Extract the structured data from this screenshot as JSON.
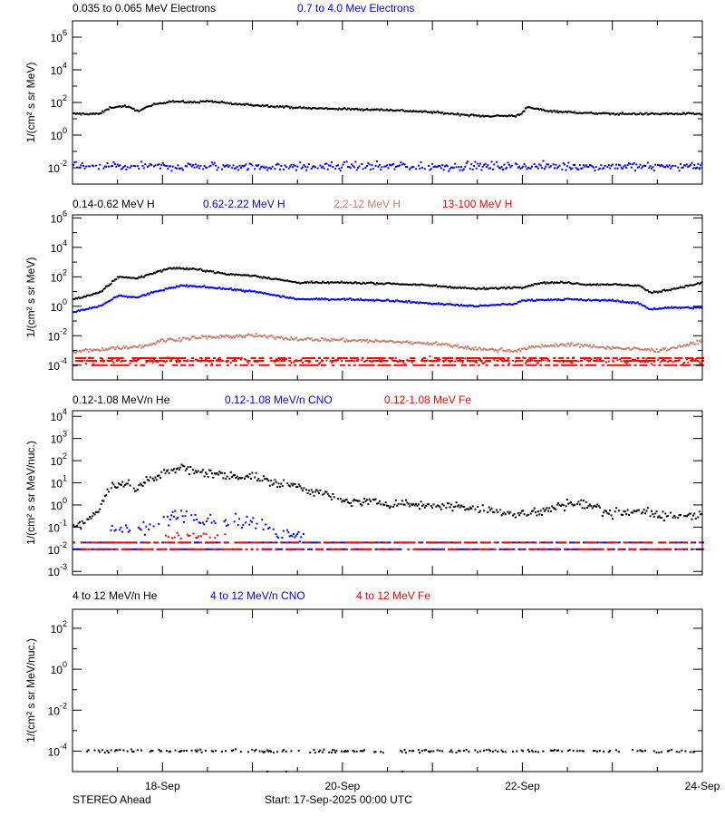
{
  "footer": {
    "spacecraft": "STEREO Ahead",
    "start": "Start: 17-Sep-2025 00:00 UTC"
  },
  "x_axis": {
    "start": "2025-09-17T00:00",
    "end": "2025-09-24T00:00",
    "tick_labels": [
      {
        "date": "2025-09-18T00:00",
        "label": "18-Sep"
      },
      {
        "date": "2025-09-20T00:00",
        "label": "20-Sep"
      },
      {
        "date": "2025-09-22T00:00",
        "label": "22-Sep"
      },
      {
        "date": "2025-09-24T00:00",
        "label": "24-Sep"
      }
    ]
  },
  "colors": {
    "black": "#000000",
    "blue": "#0000ff",
    "brown": "#c8806a",
    "red": "#ff0000"
  },
  "chart_data": [
    {
      "type": "scatter",
      "yscale": "log",
      "ylabel": "1/(cm² s sr MeV)",
      "ylim": [
        0.001,
        10000000
      ],
      "ytick_exponents": [
        -2,
        0,
        2,
        4,
        6
      ],
      "series": [
        {
          "name": "0.035 to 0.065 MeV Electrons",
          "color": "black",
          "points": [
            [
              "2025-09-17T00:00",
              20
            ],
            [
              "2025-09-17T07:00",
              20
            ],
            [
              "2025-09-17T10:00",
              50
            ],
            [
              "2025-09-17T14:00",
              60
            ],
            [
              "2025-09-17T17:00",
              30
            ],
            [
              "2025-09-17T22:00",
              80
            ],
            [
              "2025-09-18T02:00",
              120
            ],
            [
              "2025-09-18T07:00",
              100
            ],
            [
              "2025-09-18T12:00",
              120
            ],
            [
              "2025-09-18T19:00",
              80
            ],
            [
              "2025-09-19T05:00",
              60
            ],
            [
              "2025-09-19T14:00",
              45
            ],
            [
              "2025-09-20T00:00",
              40
            ],
            [
              "2025-09-20T12:00",
              35
            ],
            [
              "2025-09-21T00:00",
              25
            ],
            [
              "2025-09-21T12:00",
              15
            ],
            [
              "2025-09-21T22:00",
              15
            ],
            [
              "2025-09-22T00:00",
              25
            ],
            [
              "2025-09-22T01:00",
              50
            ],
            [
              "2025-09-22T07:00",
              30
            ],
            [
              "2025-09-22T17:00",
              22
            ],
            [
              "2025-09-23T00:00",
              20
            ],
            [
              "2025-09-23T12:00",
              20
            ],
            [
              "2025-09-24T00:00",
              20
            ]
          ]
        },
        {
          "name": "0.7 to 4.0 Mev Electrons",
          "color": "blue",
          "points": [
            [
              "2025-09-17T00:00",
              0.012
            ],
            [
              "2025-09-24T00:00",
              0.012
            ]
          ]
        }
      ]
    },
    {
      "type": "scatter",
      "yscale": "log",
      "ylabel": "1/(cm² s sr MeV)",
      "ylim": [
        1e-05,
        1600000
      ],
      "ytick_exponents": [
        -4,
        -2,
        0,
        2,
        4,
        6
      ],
      "series": [
        {
          "name": "0.14-0.62 MeV H",
          "color": "black",
          "points": [
            [
              "2025-09-17T00:00",
              3
            ],
            [
              "2025-09-17T07:00",
              8
            ],
            [
              "2025-09-17T12:00",
              100
            ],
            [
              "2025-09-17T17:00",
              80
            ],
            [
              "2025-09-17T22:00",
              200
            ],
            [
              "2025-09-18T02:00",
              400
            ],
            [
              "2025-09-18T10:00",
              300
            ],
            [
              "2025-09-18T17:00",
              150
            ],
            [
              "2025-09-19T00:00",
              120
            ],
            [
              "2025-09-19T12:00",
              40
            ],
            [
              "2025-09-20T00:00",
              40
            ],
            [
              "2025-09-20T12:00",
              35
            ],
            [
              "2025-09-21T00:00",
              25
            ],
            [
              "2025-09-21T12:00",
              15
            ],
            [
              "2025-09-22T00:00",
              20
            ],
            [
              "2025-09-22T05:00",
              40
            ],
            [
              "2025-09-22T12:00",
              40
            ],
            [
              "2025-09-22T17:00",
              30
            ],
            [
              "2025-09-23T00:00",
              30
            ],
            [
              "2025-09-23T07:00",
              25
            ],
            [
              "2025-09-23T10:00",
              8
            ],
            [
              "2025-09-23T14:00",
              12
            ],
            [
              "2025-09-24T00:00",
              40
            ]
          ]
        },
        {
          "name": "0.62-2.22 MeV H",
          "color": "blue",
          "points": [
            [
              "2025-09-17T00:00",
              0.4
            ],
            [
              "2025-09-17T07:00",
              1
            ],
            [
              "2025-09-17T12:00",
              5
            ],
            [
              "2025-09-17T17:00",
              4
            ],
            [
              "2025-09-17T22:00",
              10
            ],
            [
              "2025-09-18T05:00",
              25
            ],
            [
              "2025-09-18T12:00",
              20
            ],
            [
              "2025-09-19T00:00",
              10
            ],
            [
              "2025-09-19T12:00",
              3
            ],
            [
              "2025-09-20T00:00",
              3
            ],
            [
              "2025-09-20T12:00",
              2.5
            ],
            [
              "2025-09-21T00:00",
              1.5
            ],
            [
              "2025-09-21T12:00",
              1
            ],
            [
              "2025-09-21T22:00",
              1.5
            ],
            [
              "2025-09-22T00:00",
              2.5
            ],
            [
              "2025-09-22T12:00",
              3
            ],
            [
              "2025-09-22T17:00",
              2.5
            ],
            [
              "2025-09-23T00:00",
              2.5
            ],
            [
              "2025-09-23T07:00",
              1.5
            ],
            [
              "2025-09-23T10:00",
              0.6
            ],
            [
              "2025-09-23T14:00",
              0.8
            ],
            [
              "2025-09-24T00:00",
              0.8
            ]
          ]
        },
        {
          "name": "2.2-12 MeV H",
          "color": "brown",
          "points": [
            [
              "2025-09-17T00:00",
              0.0008
            ],
            [
              "2025-09-17T12:00",
              0.0015
            ],
            [
              "2025-09-17T19:00",
              0.002
            ],
            [
              "2025-09-18T00:00",
              0.005
            ],
            [
              "2025-09-18T12:00",
              0.008
            ],
            [
              "2025-09-19T00:00",
              0.01
            ],
            [
              "2025-09-19T12:00",
              0.006
            ],
            [
              "2025-09-20T00:00",
              0.005
            ],
            [
              "2025-09-20T12:00",
              0.004
            ],
            [
              "2025-09-21T00:00",
              0.003
            ],
            [
              "2025-09-21T12:00",
              0.0012
            ],
            [
              "2025-09-21T22:00",
              0.001
            ],
            [
              "2025-09-22T05:00",
              0.002
            ],
            [
              "2025-09-22T12:00",
              0.0025
            ],
            [
              "2025-09-23T00:00",
              0.0015
            ],
            [
              "2025-09-23T12:00",
              0.001
            ],
            [
              "2025-09-23T22:00",
              0.003
            ],
            [
              "2025-09-24T00:00",
              0.006
            ]
          ]
        },
        {
          "name": "13-100 MeV H",
          "color": "red",
          "points": [
            [
              "2025-09-17T00:00",
              0.0002
            ],
            [
              "2025-09-24T00:00",
              0.0002
            ]
          ],
          "levels": [
            0.0003,
            0.0002,
            0.0001
          ]
        }
      ]
    },
    {
      "type": "scatter",
      "yscale": "log",
      "ylabel": "1/(cm² s sr MeV/nuc.)",
      "ylim": [
        0.0007,
        18000
      ],
      "ytick_exponents": [
        -3,
        -2,
        -1,
        0,
        1,
        2,
        3,
        4
      ],
      "series": [
        {
          "name": "0.12-1.08 MeV/n He",
          "color": "black",
          "points": [
            [
              "2025-09-17T00:00",
              0.1
            ],
            [
              "2025-09-17T05:00",
              0.3
            ],
            [
              "2025-09-17T07:00",
              0.6
            ],
            [
              "2025-09-17T10:00",
              8
            ],
            [
              "2025-09-17T14:00",
              10
            ],
            [
              "2025-09-17T17:00",
              5
            ],
            [
              "2025-09-17T19:00",
              12
            ],
            [
              "2025-09-17T22:00",
              15
            ],
            [
              "2025-09-18T00:00",
              30
            ],
            [
              "2025-09-18T05:00",
              50
            ],
            [
              "2025-09-18T07:00",
              35
            ],
            [
              "2025-09-18T14:00",
              25
            ],
            [
              "2025-09-18T19:00",
              20
            ],
            [
              "2025-09-19T00:00",
              20
            ],
            [
              "2025-09-19T05:00",
              10
            ],
            [
              "2025-09-19T12:00",
              7
            ],
            [
              "2025-09-19T19:00",
              3
            ],
            [
              "2025-09-20T00:00",
              1.5
            ],
            [
              "2025-09-20T12:00",
              1.2
            ],
            [
              "2025-09-21T00:00",
              1.0
            ],
            [
              "2025-09-21T12:00",
              0.7
            ],
            [
              "2025-09-21T22:00",
              0.4
            ],
            [
              "2025-09-22T05:00",
              0.5
            ],
            [
              "2025-09-22T12:00",
              1.2
            ],
            [
              "2025-09-22T17:00",
              1.0
            ],
            [
              "2025-09-23T00:00",
              0.4
            ],
            [
              "2025-09-23T07:00",
              0.6
            ],
            [
              "2025-09-23T12:00",
              0.3
            ],
            [
              "2025-09-24T00:00",
              0.4
            ]
          ]
        },
        {
          "name": "0.12-1.08 MeV/n CNO",
          "color": "blue",
          "points": [
            [
              "2025-09-17T10:00",
              0.07
            ],
            [
              "2025-09-17T19:00",
              0.08
            ],
            [
              "2025-09-18T00:00",
              0.2
            ],
            [
              "2025-09-18T05:00",
              0.4
            ],
            [
              "2025-09-18T12:00",
              0.25
            ],
            [
              "2025-09-18T19:00",
              0.2
            ],
            [
              "2025-09-19T00:00",
              0.15
            ],
            [
              "2025-09-19T07:00",
              0.06
            ],
            [
              "2025-09-19T14:00",
              0.04
            ]
          ],
          "levels": [
            0.02,
            0.01
          ]
        },
        {
          "name": "0.12-1.08 MeV Fe",
          "color": "red",
          "points": [
            [
              "2025-09-18T00:00",
              0.04
            ],
            [
              "2025-09-18T17:00",
              0.04
            ]
          ],
          "levels": [
            0.02,
            0.01
          ]
        }
      ]
    },
    {
      "type": "scatter",
      "yscale": "log",
      "ylabel": "1/(cm² s sr MeV/nuc.)",
      "ylim": [
        1e-05,
        850
      ],
      "ytick_exponents": [
        -4,
        -2,
        0,
        2
      ],
      "series": [
        {
          "name": "4 to 12 MeV/n He",
          "color": "black",
          "points": [
            [
              "2025-09-17T03:00",
              0.0001
            ],
            [
              "2025-09-23T22:00",
              0.0001
            ]
          ]
        },
        {
          "name": "4 to 12 MeV/n CNO",
          "color": "blue",
          "points": [
            [
              "2025-09-18T16:00",
              1e-05
            ],
            [
              "2025-09-20T17:00",
              1e-05
            ]
          ]
        },
        {
          "name": "4 to 12 MeV Fe",
          "color": "red",
          "points": []
        }
      ]
    }
  ]
}
